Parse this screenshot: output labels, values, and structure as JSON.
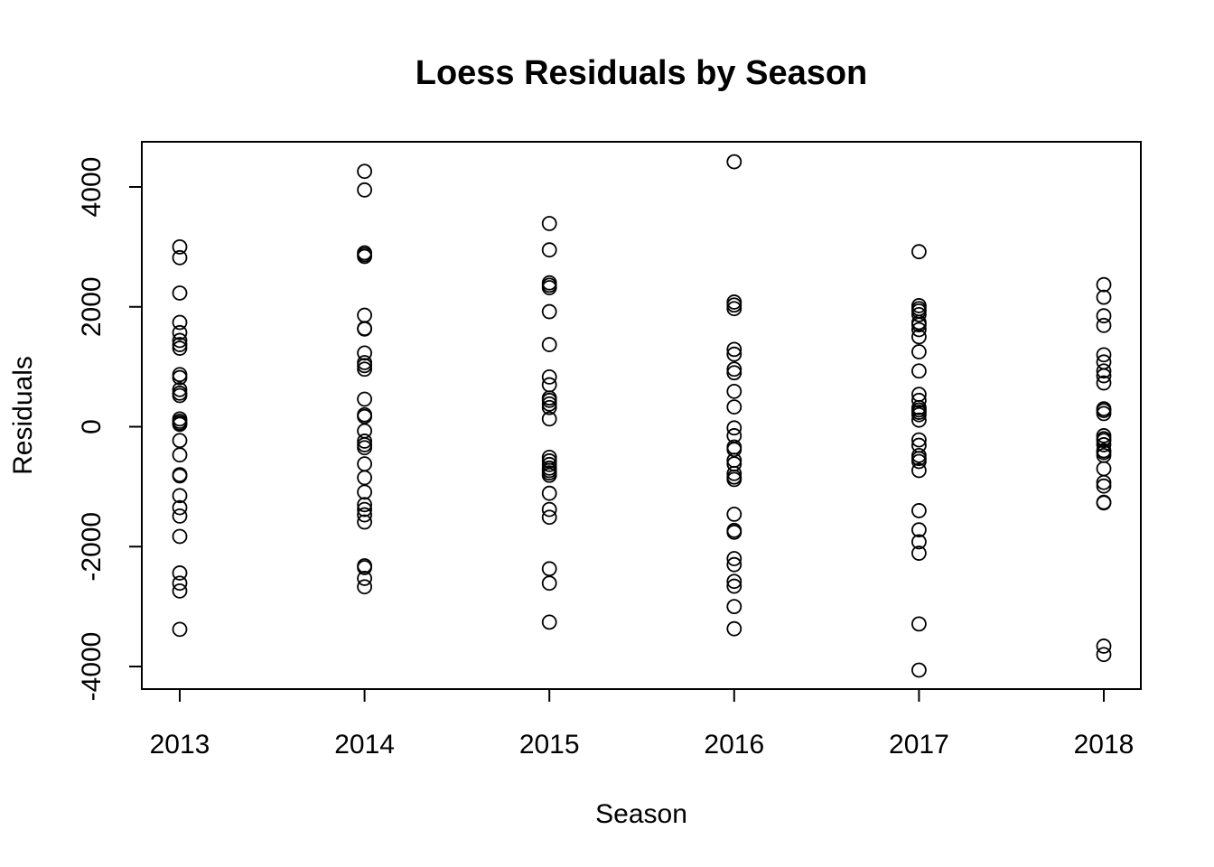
{
  "chart_data": {
    "type": "scatter",
    "title": "Loess Residuals by Season",
    "xlabel": "Season",
    "ylabel": "Residuals",
    "categories": [
      "2013",
      "2014",
      "2015",
      "2016",
      "2017",
      "2018"
    ],
    "y_ticks": [
      -4000,
      -2000,
      0,
      2000,
      4000
    ],
    "ylim": [
      -4400,
      4800
    ],
    "grid": false,
    "legend": "none",
    "series": [
      {
        "values": [
          [
            3000,
            2820,
            2230,
            1740,
            1570,
            1440,
            1370,
            1310,
            870,
            820,
            620,
            560,
            520,
            130,
            90,
            60,
            40,
            -230,
            -470,
            -800,
            -820,
            -1150,
            -1350,
            -1490,
            -1830,
            -2440,
            -2610,
            -2740,
            -3380
          ],
          [
            4260,
            3950,
            2900,
            2870,
            2840,
            1860,
            1640,
            1630,
            1230,
            1070,
            1020,
            960,
            460,
            200,
            170,
            -70,
            -240,
            -300,
            -350,
            -620,
            -850,
            -1090,
            -1300,
            -1380,
            -1470,
            -1590,
            -2320,
            -2350,
            -2530,
            -2670
          ],
          [
            3390,
            2950,
            2400,
            2360,
            2320,
            1920,
            1370,
            830,
            700,
            480,
            440,
            380,
            320,
            130,
            -510,
            -570,
            -630,
            -690,
            -730,
            -770,
            -810,
            -1110,
            -1380,
            -1510,
            -2370,
            -2610,
            -3260
          ],
          [
            4420,
            2080,
            2030,
            1970,
            1290,
            1210,
            960,
            900,
            590,
            330,
            -20,
            -150,
            -340,
            -380,
            -560,
            -620,
            -780,
            -840,
            -880,
            -1460,
            -1730,
            -1760,
            -2200,
            -2300,
            -2580,
            -2660,
            -3000,
            -3370
          ],
          [
            2920,
            2020,
            1970,
            1930,
            1870,
            1740,
            1700,
            1620,
            1500,
            1250,
            930,
            540,
            440,
            320,
            280,
            240,
            200,
            110,
            -220,
            -310,
            -480,
            -530,
            -580,
            -730,
            -1400,
            -1720,
            -1920,
            -2110,
            -3290,
            -4060
          ],
          [
            2370,
            2160,
            1850,
            1690,
            1200,
            1080,
            930,
            850,
            730,
            300,
            270,
            220,
            -150,
            -200,
            -230,
            -300,
            -400,
            -430,
            -480,
            -700,
            -930,
            -990,
            -1260,
            -1270,
            -3660,
            -3800
          ]
        ]
      }
    ]
  }
}
